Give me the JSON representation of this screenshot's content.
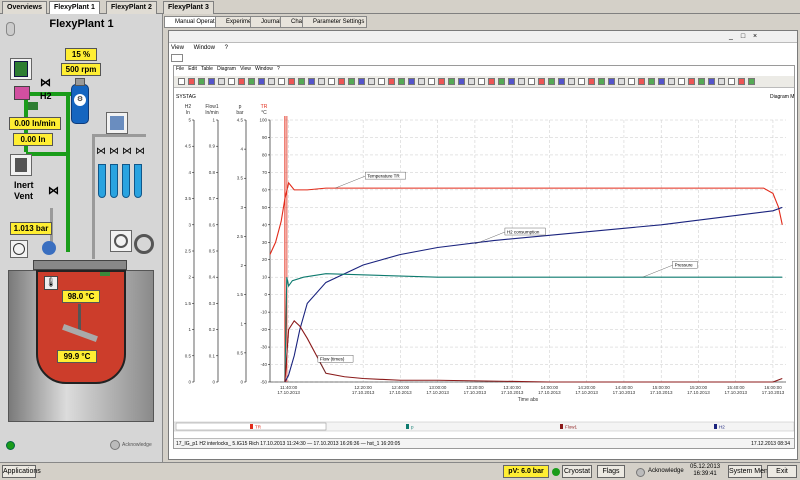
{
  "top_tabs": [
    "Overviews",
    "FlexyPlant 1",
    "FlexyPlant 2",
    "FlexyPlant 3"
  ],
  "plant": {
    "title": "FlexyPlant 1",
    "speed_pct": "15 %",
    "speed_rpm": "500 rpm",
    "gas": "H2",
    "flow": "0.00 ln/min",
    "volume": "0.00 ln",
    "inert_label": "Inert",
    "vent_label": "Vent",
    "pressure": "1.013 bar",
    "reactor_temp": "98.0 °C",
    "jacket_temp": "99.9 °C",
    "acknowledge": "Acknowledge"
  },
  "sub_tabs": [
    "Manual Operation",
    "Experiment",
    "Journal",
    "Chart",
    "Parameter Settings"
  ],
  "window_menu": [
    "View",
    "Window",
    "?"
  ],
  "doc_menu": [
    "File",
    "Edit",
    "Table",
    "Diagram",
    "View",
    "Window",
    "?"
  ],
  "chart_header": {
    "left": "SYSTAG",
    "right": "Diagram Ma"
  },
  "axis_heads": [
    {
      "name": "H2",
      "unit": "ln"
    },
    {
      "name": "Flow1",
      "unit": "ln/min"
    },
    {
      "name": "p",
      "unit": "bar"
    },
    {
      "name": "TR",
      "unit": "°C"
    }
  ],
  "status_text": "17_IG_p1 H2 interlocks_ 5.IG15 Rich 17.10.2013 11:24:30 — 17.10.2013 16:26:36 — hst_1 16:20:05",
  "status_right": "17.12.2013   08:34",
  "bottom": {
    "applications": "Applications",
    "pv": "pV: 6.0 bar",
    "cryostat": "Cryostat",
    "flags": "Flags",
    "acknowledge": "Acknowledge",
    "date": "05.12.2013",
    "time": "16:39:41",
    "system_menu": "System Menu",
    "exit": "Exit"
  },
  "colors": {
    "tr": "#e22b1a",
    "h2": "#1a237e",
    "pressure": "#0d7a6e",
    "flow": "#8b1a1a"
  },
  "chart_data": {
    "type": "line",
    "title": "",
    "xlabel": "Time abs",
    "x_ticks": [
      "11:40:00 17.10.2013",
      "12:20:00 17.10.2013",
      "12:40:00 17.10.2013",
      "13:00:00 17.10.2013",
      "13:20:00 17.10.2013",
      "13:40:00 17.10.2013",
      "14:00:00 17.10.2013",
      "14:20:00 17.10.2013",
      "14:40:00 17.10.2013",
      "15:00:00 17.10.2013",
      "15:20:00 17.10.2013",
      "15:40:00 17.10.2013",
      "16:00:00 17.10.2013"
    ],
    "xlim": [
      "11:30",
      "16:07"
    ],
    "axes": [
      {
        "name": "H2",
        "unit": "ln",
        "ticks": [
          "5",
          "4.5",
          "4",
          "3.5",
          "3",
          "2.5",
          "2",
          "1.5",
          "1",
          "0.5",
          "0"
        ]
      },
      {
        "name": "Flow1",
        "unit": "ln/min",
        "ticks": [
          "1",
          "0.9",
          "0.8",
          "0.7",
          "0.6",
          "0.5",
          "0.4",
          "0.3",
          "0.2",
          "0.1",
          "0"
        ]
      },
      {
        "name": "p",
        "unit": "bar",
        "ticks": [
          "4.5",
          "4",
          "3.5",
          "3",
          "2.5",
          "2",
          "1.5",
          "1",
          "0.5",
          "0"
        ]
      },
      {
        "name": "TR",
        "unit": "°C",
        "ticks": [
          "100",
          "90",
          "80",
          "70",
          "60",
          "50",
          "40",
          "30",
          "20",
          "10",
          "0",
          "-10",
          "-20",
          "-30",
          "-40",
          "-50"
        ],
        "ylim": [
          -50,
          100
        ]
      }
    ],
    "series": [
      {
        "name": "Temperature TR",
        "axis": "TR °C",
        "x": [
          "11:30",
          "11:33",
          "11:36",
          "11:38",
          "11:40",
          "11:43",
          "11:50",
          "12:00",
          "12:20",
          "13:00",
          "14:00",
          "15:00",
          "15:50",
          "15:55",
          "16:00",
          "16:03",
          "16:05"
        ],
        "y": [
          23,
          30,
          42,
          55,
          64,
          60,
          60,
          61,
          61,
          61,
          61,
          61,
          61,
          61,
          58,
          50,
          40
        ]
      },
      {
        "name": "H2 consumption",
        "axis": "TR °C",
        "x": [
          "11:38",
          "11:40",
          "11:43",
          "11:46",
          "11:50",
          "12:00",
          "12:20",
          "12:40",
          "13:00",
          "13:30",
          "14:00",
          "14:30",
          "15:00",
          "15:30",
          "16:00",
          "16:05"
        ],
        "y": [
          -50,
          -46,
          -35,
          -20,
          -5,
          7,
          17,
          23,
          27,
          31,
          34,
          37,
          40,
          44,
          48,
          50
        ]
      },
      {
        "name": "Pressure",
        "axis": "TR °C",
        "x": [
          "11:38",
          "11:39",
          "11:40",
          "11:42",
          "11:48",
          "12:00",
          "13:00",
          "14:00",
          "15:00",
          "16:05"
        ],
        "y": [
          -50,
          10,
          5,
          8,
          10,
          12,
          10,
          10,
          10,
          10
        ]
      },
      {
        "name": "Flow (times)",
        "axis": "TR °C",
        "x": [
          "11:38",
          "11:40",
          "11:43",
          "11:46",
          "11:50",
          "11:55",
          "12:00",
          "12:10",
          "12:20",
          "12:40",
          "13:00",
          "14:00",
          "15:00",
          "16:00",
          "16:05"
        ],
        "y": [
          -50,
          -20,
          -15,
          -18,
          -25,
          -35,
          -45,
          -47,
          -48,
          -49,
          -49,
          -50,
          -50,
          -50,
          -48
        ]
      }
    ],
    "legend": [
      {
        "name": "TR",
        "marker": "red"
      },
      {
        "name": "p",
        "marker": "teal"
      },
      {
        "name": "Flow1",
        "marker": "darkred"
      },
      {
        "name": "H2",
        "marker": "navy"
      }
    ],
    "grid": true
  }
}
